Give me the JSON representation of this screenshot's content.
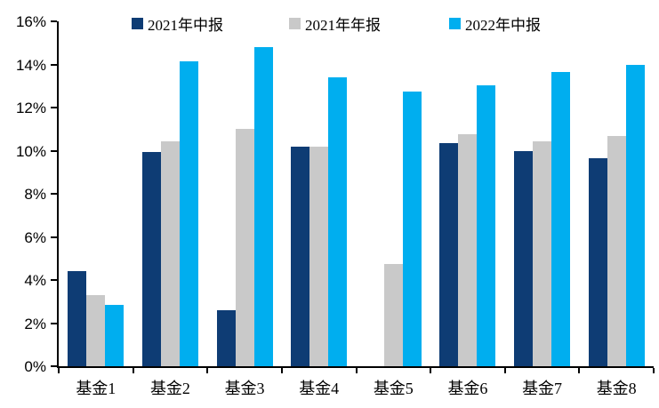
{
  "chart_data": {
    "type": "bar",
    "title": "",
    "categories": [
      "基金1",
      "基金2",
      "基金3",
      "基金4",
      "基金5",
      "基金6",
      "基金7",
      "基金8"
    ],
    "series": [
      {
        "name": "2021年中报",
        "color": "#0E3C74",
        "values": [
          4.4,
          9.95,
          2.6,
          10.2,
          null,
          10.35,
          10.0,
          9.65
        ]
      },
      {
        "name": "2021年年报",
        "color": "#C9C9C9",
        "values": [
          3.3,
          10.45,
          11.0,
          10.2,
          4.75,
          10.75,
          10.45,
          10.7
        ]
      },
      {
        "name": "2022年中报",
        "color": "#00AEEF",
        "values": [
          2.85,
          14.15,
          14.8,
          13.4,
          12.75,
          13.05,
          13.65,
          14.0
        ]
      }
    ],
    "xlabel": "",
    "ylabel": "",
    "ylim": [
      0,
      16
    ],
    "y_tick_step": 2,
    "y_tick_labels": [
      "0%",
      "2%",
      "4%",
      "6%",
      "8%",
      "10%",
      "12%",
      "14%",
      "16%"
    ],
    "grid": false,
    "legend_position": "top",
    "axis_color": "#000000",
    "text_color": "#000000"
  }
}
